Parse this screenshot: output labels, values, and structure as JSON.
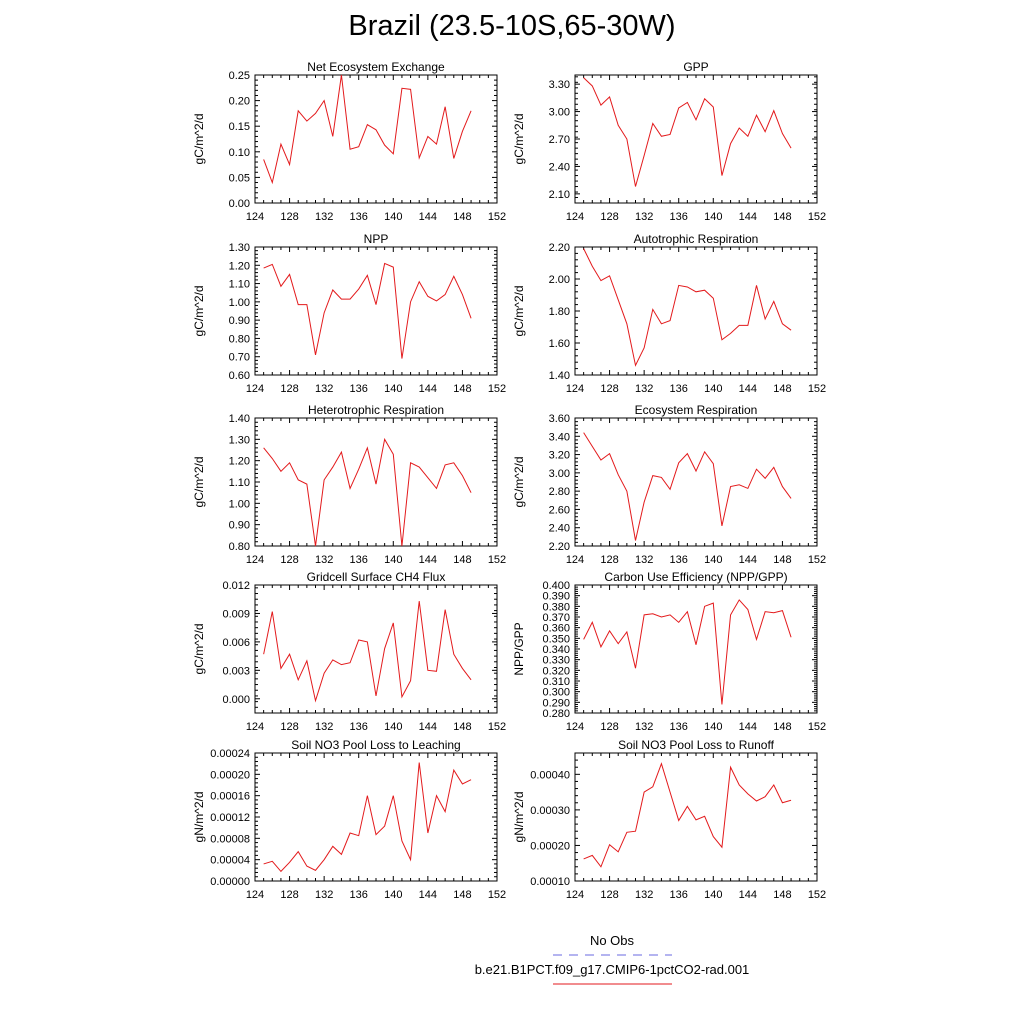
{
  "title": "Brazil (23.5-10S,65-30W)",
  "legend": [
    {
      "label": "No Obs",
      "color": "#6a6ae0",
      "dash": true
    },
    {
      "label": "b.e21.B1PCT.f09_g17.CMIP6-1pctCO2-rad.001",
      "color": "#e31a1c",
      "dash": false
    }
  ],
  "chart_data": [
    {
      "type": "line",
      "title": "Net Ecosystem Exchange",
      "ylabel": "gC/m^2/d",
      "xlim": [
        124,
        152
      ],
      "xticks": [
        124,
        128,
        132,
        136,
        140,
        144,
        148,
        152
      ],
      "ylim": [
        0.0,
        0.25
      ],
      "yticks": [
        "0.00",
        "0.05",
        "0.10",
        "0.15",
        "0.20",
        "0.25"
      ],
      "series": [
        {
          "name": "b.e21.B1PCT.f09_g17.CMIP6-1pctCO2-rad.001",
          "color": "#e31a1c",
          "x": [
            125,
            126,
            127,
            128,
            129,
            130,
            131,
            132,
            133,
            134,
            135,
            136,
            137,
            138,
            139,
            140,
            141,
            142,
            143,
            144,
            145,
            146,
            147,
            148,
            149
          ],
          "y": [
            0.085,
            0.04,
            0.115,
            0.075,
            0.18,
            0.16,
            0.175,
            0.2,
            0.13,
            0.25,
            0.105,
            0.11,
            0.153,
            0.143,
            0.113,
            0.096,
            0.224,
            0.222,
            0.088,
            0.13,
            0.115,
            0.188,
            0.087,
            0.14,
            0.18
          ]
        }
      ]
    },
    {
      "type": "line",
      "title": "GPP",
      "ylabel": "gC/m^2/d",
      "xlim": [
        124,
        152
      ],
      "xticks": [
        124,
        128,
        132,
        136,
        140,
        144,
        148,
        152
      ],
      "ylim": [
        2.0,
        3.4
      ],
      "yticks": [
        "2.10",
        "2.40",
        "2.70",
        "3.00",
        "3.30"
      ],
      "series": [
        {
          "name": "b.e21.B1PCT.f09_g17.CMIP6-1pctCO2-rad.001",
          "color": "#e31a1c",
          "x": [
            125,
            126,
            127,
            128,
            129,
            130,
            131,
            132,
            133,
            134,
            135,
            136,
            137,
            138,
            139,
            140,
            141,
            142,
            143,
            144,
            145,
            146,
            147,
            148,
            149
          ],
          "y": [
            3.37,
            3.28,
            3.07,
            3.16,
            2.85,
            2.7,
            2.18,
            2.52,
            2.87,
            2.73,
            2.75,
            3.04,
            3.1,
            2.91,
            3.14,
            3.05,
            2.3,
            2.65,
            2.82,
            2.73,
            2.96,
            2.78,
            3.01,
            2.76,
            2.6
          ]
        }
      ]
    },
    {
      "type": "line",
      "title": "NPP",
      "ylabel": "gC/m^2/d",
      "xlim": [
        124,
        152
      ],
      "xticks": [
        124,
        128,
        132,
        136,
        140,
        144,
        148,
        152
      ],
      "ylim": [
        0.6,
        1.3
      ],
      "yticks": [
        "0.60",
        "0.70",
        "0.80",
        "0.90",
        "1.00",
        "1.10",
        "1.20",
        "1.30"
      ],
      "series": [
        {
          "name": "b.e21.B1PCT.f09_g17.CMIP6-1pctCO2-rad.001",
          "color": "#e31a1c",
          "x": [
            125,
            126,
            127,
            128,
            129,
            130,
            131,
            132,
            133,
            134,
            135,
            136,
            137,
            138,
            139,
            140,
            141,
            142,
            143,
            144,
            145,
            146,
            147,
            148,
            149
          ],
          "y": [
            1.185,
            1.205,
            1.085,
            1.15,
            0.985,
            0.985,
            0.71,
            0.94,
            1.065,
            1.015,
            1.015,
            1.07,
            1.145,
            0.985,
            1.21,
            1.19,
            0.69,
            1.0,
            1.11,
            1.03,
            1.005,
            1.04,
            1.14,
            1.04,
            0.91
          ]
        }
      ]
    },
    {
      "type": "line",
      "title": "Autotrophic Respiration",
      "ylabel": "gC/m^2/d",
      "xlim": [
        124,
        152
      ],
      "xticks": [
        124,
        128,
        132,
        136,
        140,
        144,
        148,
        152
      ],
      "ylim": [
        1.4,
        2.2
      ],
      "yticks": [
        "1.40",
        "1.60",
        "1.80",
        "2.00",
        "2.20"
      ],
      "series": [
        {
          "name": "b.e21.B1PCT.f09_g17.CMIP6-1pctCO2-rad.001",
          "color": "#e31a1c",
          "x": [
            125,
            126,
            127,
            128,
            129,
            130,
            131,
            132,
            133,
            134,
            135,
            136,
            137,
            138,
            139,
            140,
            141,
            142,
            143,
            144,
            145,
            146,
            147,
            148,
            149
          ],
          "y": [
            2.19,
            2.08,
            1.99,
            2.02,
            1.87,
            1.72,
            1.46,
            1.57,
            1.81,
            1.72,
            1.74,
            1.96,
            1.95,
            1.92,
            1.93,
            1.88,
            1.62,
            1.66,
            1.71,
            1.71,
            1.96,
            1.75,
            1.86,
            1.72,
            1.68
          ]
        }
      ]
    },
    {
      "type": "line",
      "title": "Heterotrophic Respiration",
      "ylabel": "gC/m^2/d",
      "xlim": [
        124,
        152
      ],
      "xticks": [
        124,
        128,
        132,
        136,
        140,
        144,
        148,
        152
      ],
      "ylim": [
        0.8,
        1.4
      ],
      "yticks": [
        "0.80",
        "0.90",
        "1.00",
        "1.10",
        "1.20",
        "1.30",
        "1.40"
      ],
      "series": [
        {
          "name": "b.e21.B1PCT.f09_g17.CMIP6-1pctCO2-rad.001",
          "color": "#e31a1c",
          "x": [
            125,
            126,
            127,
            128,
            129,
            130,
            131,
            132,
            133,
            134,
            135,
            136,
            137,
            138,
            139,
            140,
            141,
            142,
            143,
            144,
            145,
            146,
            147,
            148,
            149
          ],
          "y": [
            1.26,
            1.21,
            1.15,
            1.19,
            1.11,
            1.09,
            0.8,
            1.11,
            1.17,
            1.24,
            1.07,
            1.16,
            1.26,
            1.09,
            1.3,
            1.23,
            0.8,
            1.19,
            1.17,
            1.12,
            1.07,
            1.18,
            1.19,
            1.13,
            1.05
          ]
        }
      ]
    },
    {
      "type": "line",
      "title": "Ecosystem Respiration",
      "ylabel": "gC/m^2/d",
      "xlim": [
        124,
        152
      ],
      "xticks": [
        124,
        128,
        132,
        136,
        140,
        144,
        148,
        152
      ],
      "ylim": [
        2.2,
        3.6
      ],
      "yticks": [
        "2.20",
        "2.40",
        "2.60",
        "2.80",
        "3.00",
        "3.20",
        "3.40",
        "3.60"
      ],
      "series": [
        {
          "name": "b.e21.B1PCT.f09_g17.CMIP6-1pctCO2-rad.001",
          "color": "#e31a1c",
          "x": [
            125,
            126,
            127,
            128,
            129,
            130,
            131,
            132,
            133,
            134,
            135,
            136,
            137,
            138,
            139,
            140,
            141,
            142,
            143,
            144,
            145,
            146,
            147,
            148,
            149
          ],
          "y": [
            3.44,
            3.29,
            3.14,
            3.21,
            2.98,
            2.8,
            2.26,
            2.68,
            2.97,
            2.95,
            2.82,
            3.11,
            3.21,
            3.02,
            3.23,
            3.1,
            2.42,
            2.85,
            2.87,
            2.83,
            3.04,
            2.94,
            3.06,
            2.85,
            2.72
          ]
        }
      ]
    },
    {
      "type": "line",
      "title": "Gridcell Surface CH4 Flux",
      "ylabel": "gC/m^2/d",
      "xlim": [
        124,
        152
      ],
      "xticks": [
        124,
        128,
        132,
        136,
        140,
        144,
        148,
        152
      ],
      "ylim": [
        -0.0015,
        0.012
      ],
      "yticks": [
        "0.000",
        "0.003",
        "0.006",
        "0.009",
        "0.012"
      ],
      "series": [
        {
          "name": "b.e21.B1PCT.f09_g17.CMIP6-1pctCO2-rad.001",
          "color": "#e31a1c",
          "x": [
            125,
            126,
            127,
            128,
            129,
            130,
            131,
            132,
            133,
            134,
            135,
            136,
            137,
            138,
            139,
            140,
            141,
            142,
            143,
            144,
            145,
            146,
            147,
            148,
            149
          ],
          "y": [
            0.0047,
            0.0092,
            0.0032,
            0.0047,
            0.002,
            0.004,
            -0.0002,
            0.0027,
            0.0041,
            0.0036,
            0.0038,
            0.0062,
            0.006,
            0.0003,
            0.0053,
            0.008,
            0.0002,
            0.0019,
            0.0103,
            0.003,
            0.0029,
            0.0094,
            0.0047,
            0.0032,
            0.002
          ]
        }
      ]
    },
    {
      "type": "line",
      "title": "Carbon Use Efficiency (NPP/GPP)",
      "ylabel": "NPP/GPP",
      "xlim": [
        124,
        152
      ],
      "xticks": [
        124,
        128,
        132,
        136,
        140,
        144,
        148,
        152
      ],
      "ylim": [
        0.28,
        0.4
      ],
      "yticks": [
        "0.280",
        "0.290",
        "0.300",
        "0.310",
        "0.320",
        "0.330",
        "0.340",
        "0.350",
        "0.360",
        "0.370",
        "0.380",
        "0.390",
        "0.400"
      ],
      "series": [
        {
          "name": "b.e21.B1PCT.f09_g17.CMIP6-1pctCO2-rad.001",
          "color": "#e31a1c",
          "x": [
            125,
            126,
            127,
            128,
            129,
            130,
            131,
            132,
            133,
            134,
            135,
            136,
            137,
            138,
            139,
            140,
            141,
            142,
            143,
            144,
            145,
            146,
            147,
            148,
            149
          ],
          "y": [
            0.349,
            0.365,
            0.342,
            0.357,
            0.345,
            0.356,
            0.322,
            0.372,
            0.373,
            0.37,
            0.372,
            0.365,
            0.375,
            0.344,
            0.38,
            0.383,
            0.288,
            0.372,
            0.386,
            0.377,
            0.349,
            0.375,
            0.374,
            0.376,
            0.351
          ]
        }
      ]
    },
    {
      "type": "line",
      "title": "Soil NO3 Pool Loss to Leaching",
      "ylabel": "gN/m^2/d",
      "xlim": [
        124,
        152
      ],
      "xticks": [
        124,
        128,
        132,
        136,
        140,
        144,
        148,
        152
      ],
      "ylim": [
        0.0,
        0.00024
      ],
      "yticks": [
        "0.00000",
        "0.00004",
        "0.00008",
        "0.00012",
        "0.00016",
        "0.00020",
        "0.00024"
      ],
      "series": [
        {
          "name": "b.e21.B1PCT.f09_g17.CMIP6-1pctCO2-rad.001",
          "color": "#e31a1c",
          "x": [
            125,
            126,
            127,
            128,
            129,
            130,
            131,
            132,
            133,
            134,
            135,
            136,
            137,
            138,
            139,
            140,
            141,
            142,
            143,
            144,
            145,
            146,
            147,
            148,
            149
          ],
          "y": [
            3.2e-05,
            3.7e-05,
            1.8e-05,
            3.5e-05,
            5.5e-05,
            2.8e-05,
            2e-05,
            4e-05,
            6.5e-05,
            5e-05,
            9e-05,
            8.5e-05,
            0.00016,
            8.7e-05,
            0.000103,
            0.00016,
            7.5e-05,
            4e-05,
            0.000222,
            9e-05,
            0.00016,
            0.00013,
            0.000208,
            0.000182,
            0.00019
          ]
        }
      ]
    },
    {
      "type": "line",
      "title": "Soil NO3 Pool Loss to Runoff",
      "ylabel": "gN/m^2/d",
      "xlim": [
        124,
        152
      ],
      "xticks": [
        124,
        128,
        132,
        136,
        140,
        144,
        148,
        152
      ],
      "ylim": [
        0.0001,
        0.00046
      ],
      "yticks": [
        "0.00010",
        "0.00020",
        "0.00030",
        "0.00040"
      ],
      "series": [
        {
          "name": "b.e21.B1PCT.f09_g17.CMIP6-1pctCO2-rad.001",
          "color": "#e31a1c",
          "x": [
            125,
            126,
            127,
            128,
            129,
            130,
            131,
            132,
            133,
            134,
            135,
            136,
            137,
            138,
            139,
            140,
            141,
            142,
            143,
            144,
            145,
            146,
            147,
            148,
            149
          ],
          "y": [
            0.000162,
            0.000172,
            0.00014,
            0.000202,
            0.000182,
            0.000237,
            0.00024,
            0.00035,
            0.000365,
            0.00043,
            0.00035,
            0.00027,
            0.00031,
            0.000272,
            0.000282,
            0.000225,
            0.000195,
            0.00042,
            0.00037,
            0.000345,
            0.000325,
            0.000337,
            0.00037,
            0.00032,
            0.000327
          ]
        }
      ]
    }
  ]
}
